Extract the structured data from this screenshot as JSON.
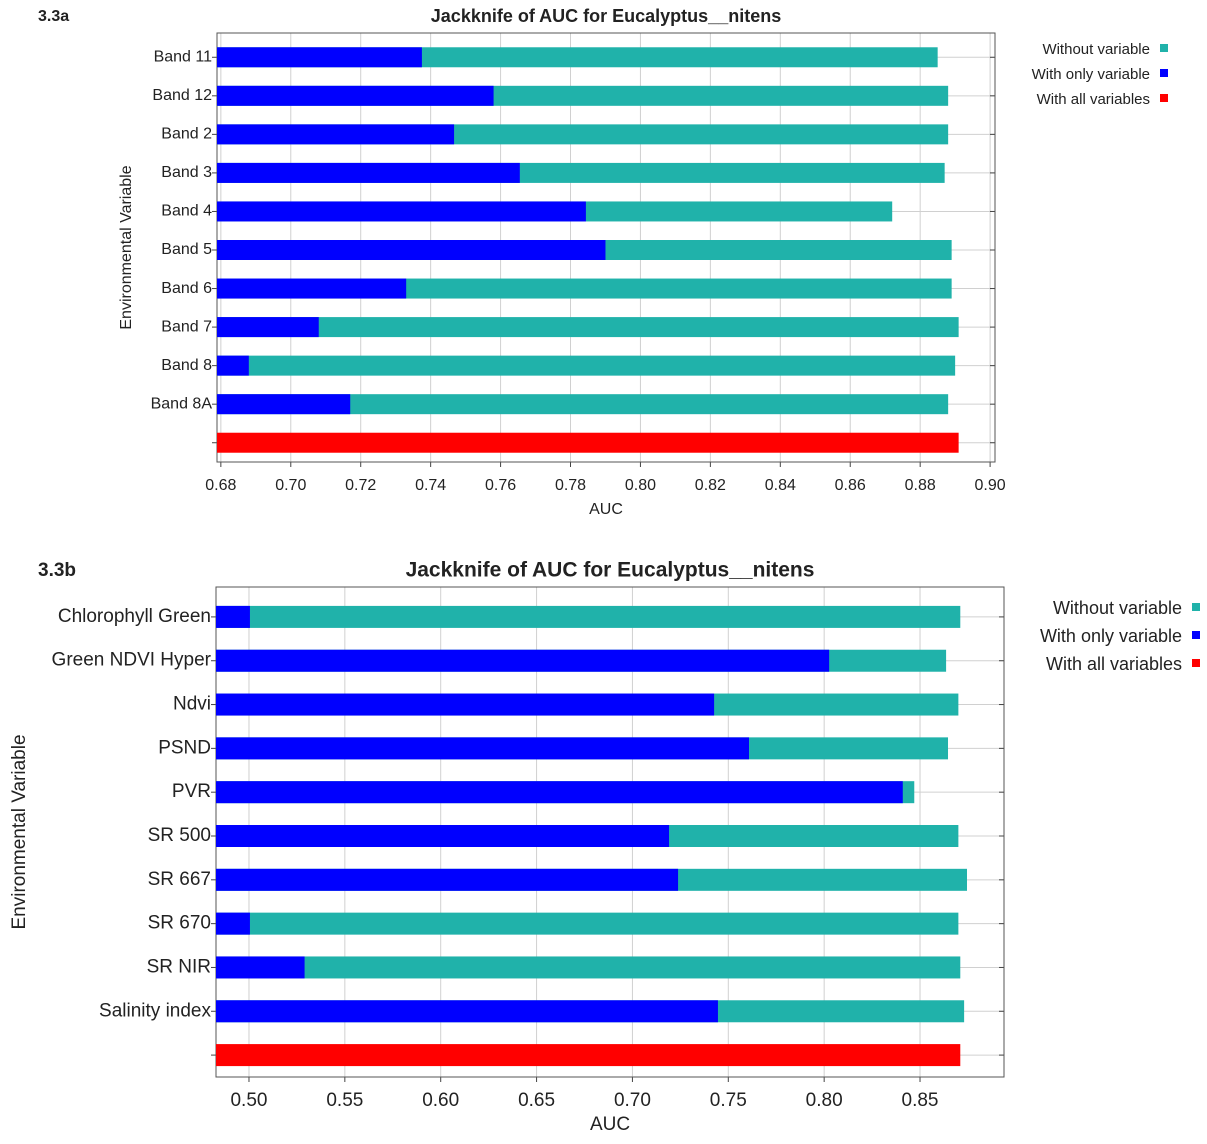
{
  "chart_data": [
    {
      "type": "bar",
      "orientation": "horizontal",
      "panel_label": "3.3a",
      "title": "Jackknife of AUC for Eucalyptus__nitens",
      "xlabel": "AUC",
      "ylabel": "Environmental Variable",
      "categories": [
        "Band 11",
        "Band 12",
        "Band 2",
        "Band 3",
        "Band 4",
        "Band 5",
        "Band 6",
        "Band 7",
        "Band 8",
        "Band 8A",
        null
      ],
      "series": [
        {
          "name": "Without variable",
          "color": "#20b2aa",
          "values": [
            0.885,
            0.888,
            0.888,
            0.887,
            0.872,
            0.889,
            0.889,
            0.891,
            0.89,
            0.888,
            null
          ]
        },
        {
          "name": "With only variable",
          "color": "#0000ff",
          "values": [
            0.7375,
            0.758,
            0.7467,
            0.7655,
            0.7844,
            0.79,
            0.733,
            0.708,
            0.688,
            0.717,
            null
          ]
        },
        {
          "name": "With all variables",
          "color": "#ff0000",
          "values": [
            null,
            null,
            null,
            null,
            null,
            null,
            null,
            null,
            null,
            null,
            0.891
          ]
        }
      ],
      "xlim": [
        0.6789,
        0.9014
      ],
      "xticks": [
        {
          "value": 0.68,
          "label": "0.68"
        },
        {
          "value": 0.7,
          "label": "0.70"
        },
        {
          "value": 0.72,
          "label": "0.72"
        },
        {
          "value": 0.74,
          "label": "0.74"
        },
        {
          "value": 0.76,
          "label": "0.76"
        },
        {
          "value": 0.78,
          "label": "0.78"
        },
        {
          "value": 0.8,
          "label": "0.80"
        },
        {
          "value": 0.82,
          "label": "0.82"
        },
        {
          "value": 0.84,
          "label": "0.84"
        },
        {
          "value": 0.86,
          "label": "0.86"
        },
        {
          "value": 0.88,
          "label": "0.88"
        },
        {
          "value": 0.9,
          "label": "0.90"
        }
      ],
      "grid": true,
      "legend": "right"
    },
    {
      "type": "bar",
      "orientation": "horizontal",
      "panel_label": "3.3b",
      "title": "Jackknife of AUC for Eucalyptus__nitens",
      "xlabel": "AUC",
      "ylabel": "Environmental Variable",
      "categories": [
        "Chlorophyll Green",
        "Green NDVI Hyper",
        "Ndvi",
        "PSND",
        "PVR",
        "SR 500",
        "SR 667",
        "SR 670",
        "SR NIR",
        "Salinity index",
        null
      ],
      "series": [
        {
          "name": "Without variable",
          "color": "#20b2aa",
          "values": [
            0.871,
            0.8636,
            0.87,
            0.8646,
            0.847,
            0.87,
            0.8745,
            0.87,
            0.871,
            0.873,
            null
          ]
        },
        {
          "name": "With only variable",
          "color": "#0000ff",
          "values": [
            0.5005,
            0.8026,
            0.7426,
            0.7608,
            0.841,
            0.7191,
            0.7238,
            0.5005,
            0.529,
            0.7446,
            null
          ]
        },
        {
          "name": "With all variables",
          "color": "#ff0000",
          "values": [
            null,
            null,
            null,
            null,
            null,
            null,
            null,
            null,
            null,
            null,
            0.871
          ]
        }
      ],
      "xlim": [
        0.4828,
        0.8938
      ],
      "xticks": [
        {
          "value": 0.5,
          "label": "0.50"
        },
        {
          "value": 0.55,
          "label": "0.55"
        },
        {
          "value": 0.6,
          "label": "0.60"
        },
        {
          "value": 0.65,
          "label": "0.65"
        },
        {
          "value": 0.7,
          "label": "0.70"
        },
        {
          "value": 0.75,
          "label": "0.75"
        },
        {
          "value": 0.8,
          "label": "0.80"
        },
        {
          "value": 0.85,
          "label": "0.85"
        }
      ],
      "grid": true,
      "legend": "right"
    }
  ]
}
